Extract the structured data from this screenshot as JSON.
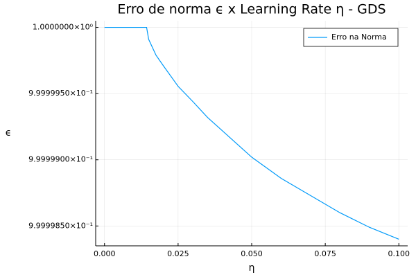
{
  "chart_data": {
    "type": "line",
    "title": "Erro de norma ϵ x Learning Rate η - GDS",
    "xlabel": "η",
    "ylabel": "ϵ",
    "x": [
      0,
      0.005,
      0.01,
      0.0143,
      0.015,
      0.0175,
      0.02,
      0.025,
      0.03,
      0.035,
      0.04,
      0.045,
      0.05,
      0.06,
      0.07,
      0.08,
      0.09,
      0.1
    ],
    "series": [
      {
        "name": "Erro na Norma",
        "color": "#009af9",
        "values": [
          1.0,
          1.0,
          1.0,
          1.0,
          0.9999991,
          0.9999979,
          0.9999971,
          0.99999555,
          0.9999944,
          0.9999932,
          0.9999922,
          0.9999912,
          0.9999902,
          0.9999886,
          0.9999873,
          0.999986,
          0.9999849,
          0.999984
        ]
      }
    ],
    "xlim": [
      -0.003,
      0.103
    ],
    "xticks": [
      {
        "value": 0,
        "label": "0.000"
      },
      0.025,
      {
        "value": 0.05,
        "label": "0.050"
      },
      0.075,
      {
        "value": 0.1,
        "label": "0.100"
      }
    ],
    "ylim": [
      0.9999835,
      1.0000005
    ],
    "yticks": [
      {
        "value": 1.0,
        "label": "1.0000000×10⁰"
      },
      {
        "value": 0.999995,
        "label": "9.9999950×10⁻¹"
      },
      {
        "value": 0.99999,
        "label": "9.9999900×10⁻¹"
      },
      {
        "value": 0.999985,
        "label": "9.9999850×10⁻¹"
      }
    ],
    "grid": true,
    "legend": "top-right"
  }
}
